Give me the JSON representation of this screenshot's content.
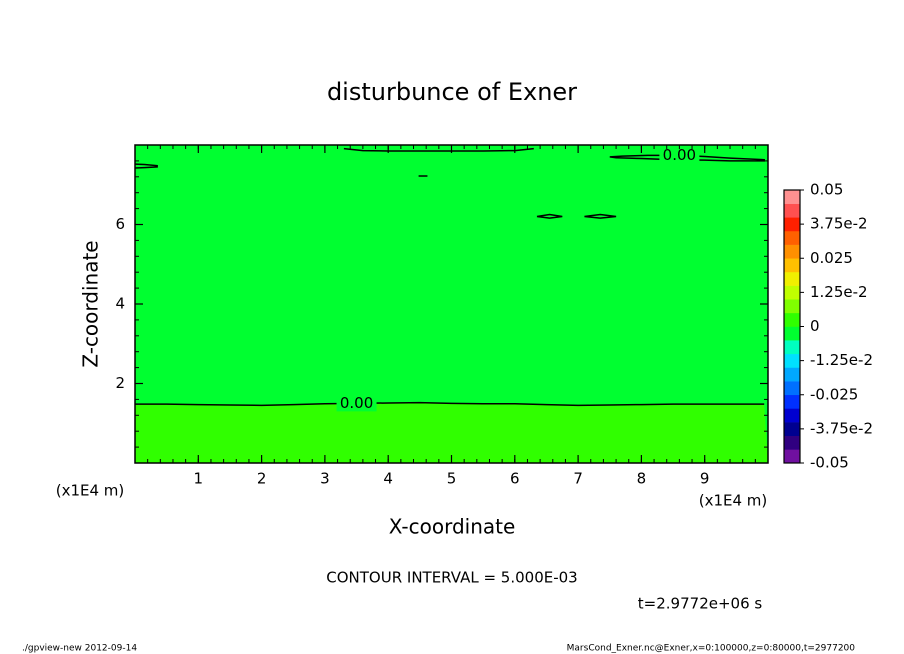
{
  "chart_data": {
    "type": "contour",
    "title": "disturbunce of Exner",
    "xlabel": "X-coordinate",
    "ylabel": "Z-coordinate",
    "x_unit": "(x1E4 m)",
    "y_unit": "(x1E4 m)",
    "xlim": [
      0,
      10
    ],
    "ylim": [
      0,
      8
    ],
    "xticks": [
      1,
      2,
      3,
      4,
      5,
      6,
      7,
      8,
      9
    ],
    "yticks": [
      2,
      4,
      6
    ],
    "background_color": "#00ff30",
    "below_contour_color": "#30ff00",
    "contour_color": "#000000",
    "contours": [
      {
        "level": 0,
        "label": "0.00",
        "x": [
          0,
          0.5,
          1,
          1.5,
          2,
          2.5,
          3,
          3.5,
          4,
          4.5,
          5,
          5.5,
          6,
          6.5,
          7,
          7.5,
          8,
          8.5,
          9,
          9.94
        ],
        "y": [
          1.48,
          1.48,
          1.47,
          1.46,
          1.45,
          1.47,
          1.49,
          1.5,
          1.51,
          1.52,
          1.5,
          1.49,
          1.49,
          1.47,
          1.45,
          1.46,
          1.47,
          1.48,
          1.48,
          1.48
        ]
      },
      {
        "level": 0,
        "label": "0.00",
        "x": [
          7.5,
          7.7,
          7.9,
          8.1,
          8.3,
          8.6,
          9.0,
          9.4,
          9.94,
          9.94,
          9.4,
          9.0,
          8.5,
          8.0,
          7.6,
          7.5
        ],
        "y": [
          7.7,
          7.72,
          7.73,
          7.74,
          7.74,
          7.74,
          7.71,
          7.67,
          7.63,
          7.6,
          7.6,
          7.62,
          7.63,
          7.66,
          7.68,
          7.7
        ]
      },
      {
        "level": 0,
        "x": [
          3.3,
          3.6,
          4.0,
          4.5,
          5.0,
          5.5,
          6.0,
          6.3
        ],
        "y": [
          7.91,
          7.86,
          7.85,
          7.85,
          7.85,
          7.85,
          7.86,
          7.91
        ]
      },
      {
        "level": 0,
        "x": [
          0,
          0.15,
          0.35,
          0.35,
          0.15,
          0
        ],
        "y": [
          7.52,
          7.51,
          7.48,
          7.45,
          7.43,
          7.42
        ]
      },
      {
        "level": 0,
        "x": [
          4.48,
          4.62
        ],
        "y": [
          7.22,
          7.22
        ]
      },
      {
        "level": 0,
        "x": [
          6.35,
          6.55,
          6.75,
          6.55,
          6.35
        ],
        "y": [
          6.2,
          6.25,
          6.2,
          6.16,
          6.2
        ]
      },
      {
        "level": 0,
        "x": [
          7.1,
          7.35,
          7.6,
          7.35,
          7.1
        ],
        "y": [
          6.2,
          6.25,
          6.2,
          6.16,
          6.2
        ]
      }
    ],
    "colorbar": {
      "lim": [
        -0.05,
        0.05
      ],
      "colors": [
        "#7010a0",
        "#300080",
        "#000090",
        "#0000d0",
        "#0030ff",
        "#0070ff",
        "#00a8ff",
        "#00e0ff",
        "#00ffc0",
        "#00ff30",
        "#30ff00",
        "#80ff00",
        "#c0ff00",
        "#f0f000",
        "#ffc000",
        "#ff9000",
        "#ff6000",
        "#ff2000",
        "#ff5050",
        "#ff9090"
      ],
      "ticks": [
        0.05,
        {
          "value": 0.0375,
          "label": "3.75e-2"
        },
        0.025,
        {
          "value": 0.0125,
          "label": "1.25e-2"
        },
        0,
        {
          "value": -0.0125,
          "label": "-1.25e-2"
        },
        -0.025,
        {
          "value": -0.0375,
          "label": "-3.75e-2"
        },
        -0.05
      ]
    },
    "contour_interval_text": "CONTOUR INTERVAL = 5.000E-03",
    "time_text": "t=2.9772e+06 s",
    "footer_left": "./gpview-new  2012-09-14",
    "footer_right": "MarsCond_Exner.nc@Exner,x=0:100000,z=0:80000,t=2977200"
  }
}
